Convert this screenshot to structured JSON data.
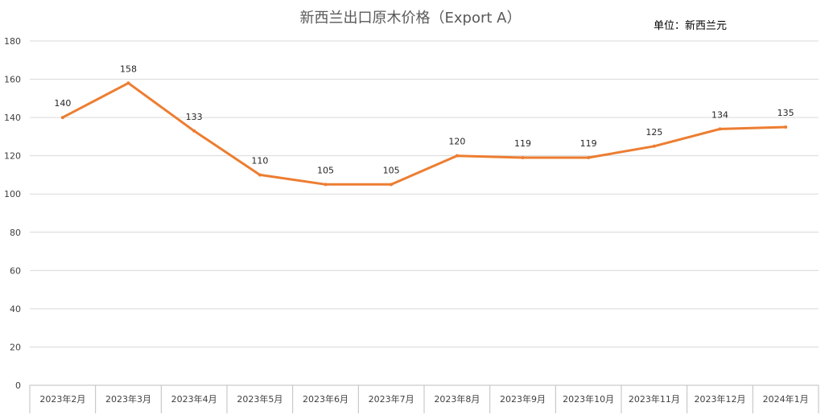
{
  "chart_data": {
    "type": "line",
    "title": "新西兰出口原木价格（Export A）",
    "unit_note": "单位：新西兰元",
    "xlabel": "",
    "ylabel": "",
    "categories": [
      "2023年2月",
      "2023年3月",
      "2023年4月",
      "2023年5月",
      "2023年6月",
      "2023年7月",
      "2023年8月",
      "2023年9月",
      "2023年10月",
      "2023年11月",
      "2023年12月",
      "2024年1月"
    ],
    "series": [
      {
        "values": [
          140,
          158,
          133,
          110,
          105,
          105,
          120,
          119,
          119,
          125,
          134,
          135
        ]
      }
    ],
    "ylim": [
      0,
      180
    ],
    "yticks": [
      0,
      20,
      40,
      60,
      80,
      100,
      120,
      140,
      160,
      180
    ],
    "grid": true,
    "data_labels": true,
    "line_color": "#ED7D31"
  }
}
